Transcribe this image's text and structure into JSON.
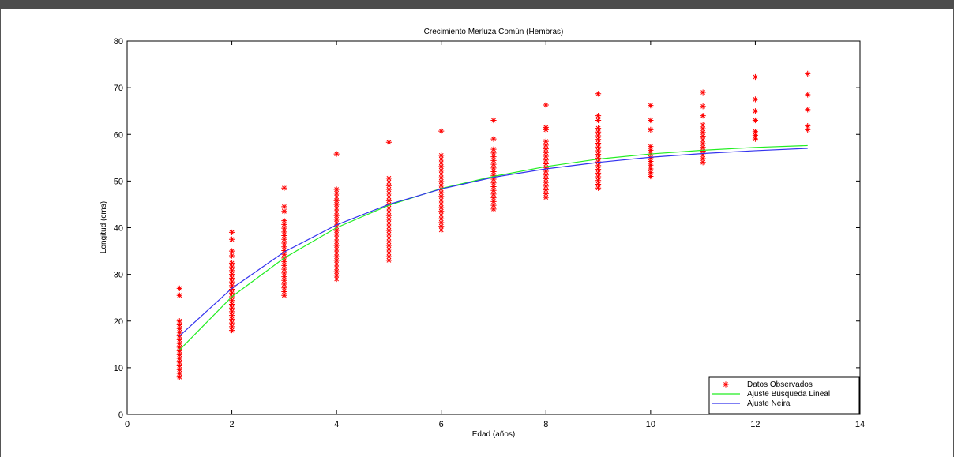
{
  "colors": {
    "observed": "#ff0000",
    "fit_linear_search": "#22ee22",
    "fit_neira": "#3333ee",
    "header_bar": "#4d4d4d"
  },
  "chart_data": {
    "type": "scatter",
    "title": "Crecimiento Merluza Común (Hembras)",
    "xlabel": "Edad (años)",
    "ylabel": "Longitud (cms)",
    "xlim": [
      0,
      14
    ],
    "ylim": [
      0,
      80
    ],
    "xticks": [
      0,
      2,
      4,
      6,
      8,
      10,
      12,
      14
    ],
    "yticks": [
      0,
      10,
      20,
      30,
      40,
      50,
      60,
      70,
      80
    ],
    "grid": false,
    "legend_position": "bottom-right",
    "series": [
      {
        "name": "Datos Observados",
        "kind": "scatter",
        "marker": "asterisk",
        "points": [
          {
            "x": 1,
            "ymin": 8,
            "ymax": 20.5,
            "outliers": [
              25.5,
              27
            ]
          },
          {
            "x": 2,
            "ymin": 18,
            "ymax": 32.5,
            "outliers": [
              34,
              35,
              37.5,
              39
            ]
          },
          {
            "x": 3,
            "ymin": 25.5,
            "ymax": 42,
            "outliers": [
              43.5,
              44.5,
              48.5
            ]
          },
          {
            "x": 4,
            "ymin": 29,
            "ymax": 48.5,
            "outliers": [
              55.8
            ]
          },
          {
            "x": 5,
            "ymin": 33,
            "ymax": 51,
            "outliers": [
              58.3
            ]
          },
          {
            "x": 6,
            "ymin": 39.5,
            "ymax": 55.5,
            "outliers": [
              60.7
            ]
          },
          {
            "x": 7,
            "ymin": 44,
            "ymax": 57,
            "outliers": [
              59,
              63
            ]
          },
          {
            "x": 8,
            "ymin": 46.5,
            "ymax": 59,
            "outliers": [
              61,
              61.5,
              66.3
            ]
          },
          {
            "x": 9,
            "ymin": 48.5,
            "ymax": 62,
            "outliers": [
              63,
              64,
              68.7
            ]
          },
          {
            "x": 10,
            "ymin": 51,
            "ymax": 58,
            "outliers": [
              61,
              63,
              66.2
            ]
          },
          {
            "x": 11,
            "ymin": 54,
            "ymax": 62,
            "outliers": [
              64,
              66,
              69
            ]
          },
          {
            "x": 12,
            "ymin": 59,
            "ymax": 61,
            "outliers": [
              63,
              65,
              67.5,
              72.3
            ]
          },
          {
            "x": 13,
            "ymin": 61,
            "ymax": 62,
            "outliers": [
              65.3,
              68.5,
              73
            ]
          }
        ]
      },
      {
        "name": "Ajuste Búsqueda Lineal",
        "kind": "line",
        "x": [
          1,
          2,
          3,
          4,
          5,
          6,
          7,
          8,
          9,
          10,
          11,
          12,
          13
        ],
        "y": [
          13.8,
          25.2,
          33.5,
          40,
          44.8,
          48.4,
          51,
          53.1,
          54.7,
          55.8,
          56.6,
          57.2,
          57.6
        ]
      },
      {
        "name": "Ajuste Neira",
        "kind": "line",
        "x": [
          1,
          2,
          3,
          4,
          5,
          6,
          7,
          8,
          9,
          10,
          11,
          12,
          13
        ],
        "y": [
          16.8,
          27,
          34.8,
          40.6,
          45,
          48.3,
          50.8,
          52.6,
          54,
          55.1,
          55.9,
          56.5,
          57
        ]
      }
    ]
  }
}
